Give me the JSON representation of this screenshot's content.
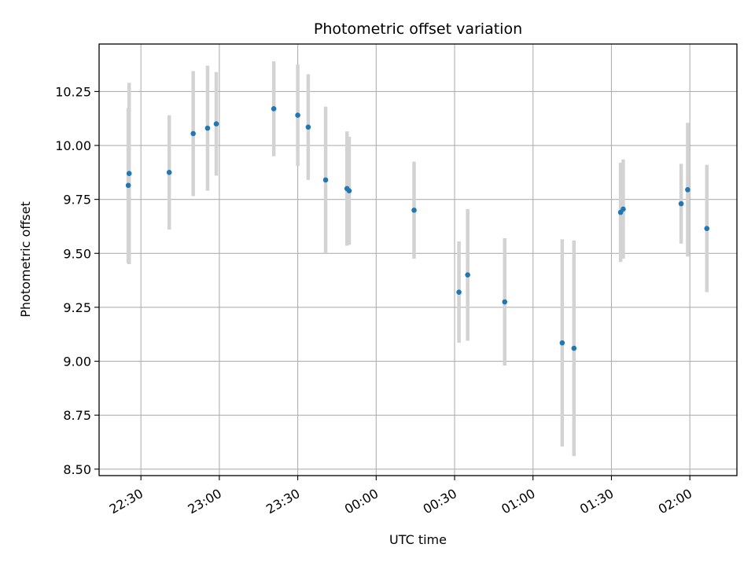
{
  "chart_data": {
    "type": "scatter",
    "title": "Photometric offset variation",
    "xlabel": "UTC time",
    "ylabel": "Photometric offset",
    "xlim": [
      "22:14",
      "02:18"
    ],
    "ylim": [
      8.47,
      10.47
    ],
    "x_ticks": [
      "22:30",
      "23:00",
      "23:30",
      "00:00",
      "00:30",
      "01:00",
      "01:30",
      "02:00"
    ],
    "y_ticks": [
      "8.50",
      "8.75",
      "9.00",
      "9.25",
      "9.50",
      "9.75",
      "10.00",
      "10.25"
    ],
    "grid": true,
    "point_color": "#1f77b4",
    "errorbar_color": "#d3d3d3",
    "points": [
      {
        "x": "22:25:10",
        "y": 9.815,
        "err": 0.36
      },
      {
        "x": "22:25:30",
        "y": 9.87,
        "err": 0.42
      },
      {
        "x": "22:40:50",
        "y": 9.875,
        "err": 0.265
      },
      {
        "x": "22:50:00",
        "y": 10.055,
        "err": 0.29
      },
      {
        "x": "22:55:30",
        "y": 10.08,
        "err": 0.29
      },
      {
        "x": "22:58:50",
        "y": 10.1,
        "err": 0.24
      },
      {
        "x": "23:20:50",
        "y": 10.17,
        "err": 0.22
      },
      {
        "x": "23:30:00",
        "y": 10.14,
        "err": 0.235
      },
      {
        "x": "23:34:00",
        "y": 10.085,
        "err": 0.245
      },
      {
        "x": "23:40:40",
        "y": 9.84,
        "err": 0.34
      },
      {
        "x": "23:48:50",
        "y": 9.8,
        "err": 0.265
      },
      {
        "x": "23:49:40",
        "y": 9.79,
        "err": 0.25
      },
      {
        "x": "00:14:30",
        "y": 9.7,
        "err": 0.225
      },
      {
        "x": "00:31:40",
        "y": 9.32,
        "err": 0.235
      },
      {
        "x": "00:35:00",
        "y": 9.4,
        "err": 0.305
      },
      {
        "x": "00:49:10",
        "y": 9.275,
        "err": 0.295
      },
      {
        "x": "01:11:10",
        "y": 9.085,
        "err": 0.48
      },
      {
        "x": "01:15:40",
        "y": 9.06,
        "err": 0.5
      },
      {
        "x": "01:33:30",
        "y": 9.69,
        "err": 0.23
      },
      {
        "x": "01:34:30",
        "y": 9.705,
        "err": 0.23
      },
      {
        "x": "01:56:40",
        "y": 9.73,
        "err": 0.185
      },
      {
        "x": "01:59:10",
        "y": 9.795,
        "err": 0.31
      },
      {
        "x": "02:06:30",
        "y": 9.615,
        "err": 0.295
      }
    ]
  }
}
